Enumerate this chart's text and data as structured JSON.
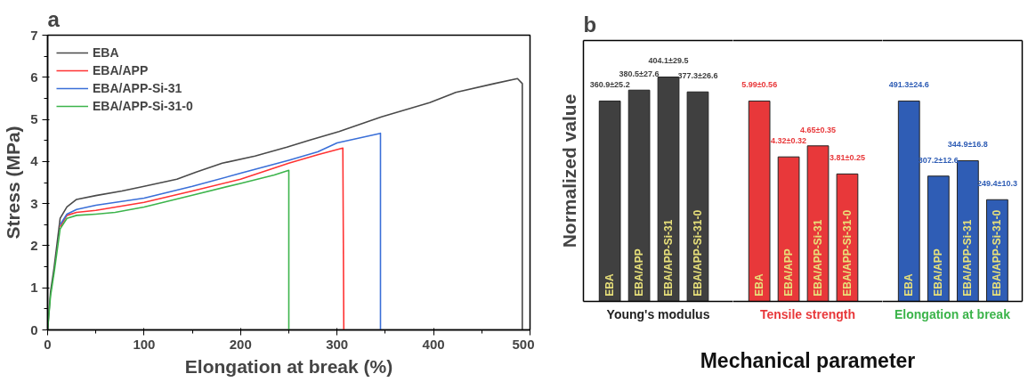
{
  "chart_data": [
    {
      "type": "line",
      "title": "a",
      "xlabel": "Elongation at break (%)",
      "ylabel": "Stress (MPa)",
      "xlim": [
        0,
        500
      ],
      "ylim": [
        0,
        7
      ],
      "xticks": [
        0,
        100,
        200,
        300,
        400,
        500
      ],
      "yticks": [
        0,
        1,
        2,
        3,
        4,
        5,
        6,
        7
      ],
      "legend": "top left",
      "line_style": "solid",
      "series": [
        {
          "name": "EBA",
          "color": "#4a4a4a",
          "x": [
            0,
            3,
            6.7,
            13,
            20,
            30,
            50,
            77,
            100,
            134,
            154,
            181,
            215,
            248,
            272,
            302,
            346,
            396,
            423,
            463,
            487,
            492,
            492
          ],
          "values": [
            0,
            0.9,
            1.48,
            2.65,
            2.92,
            3.1,
            3.19,
            3.3,
            3.41,
            3.58,
            3.75,
            3.96,
            4.13,
            4.34,
            4.51,
            4.71,
            5.06,
            5.4,
            5.64,
            5.85,
            5.97,
            5.85,
            0
          ]
        },
        {
          "name": "EBA/APP",
          "color": "#ff3333",
          "x": [
            13,
            20,
            30,
            50,
            100,
            150,
            200,
            250,
            280,
            306,
            307
          ],
          "values": [
            2.45,
            2.72,
            2.79,
            2.84,
            3.03,
            3.3,
            3.58,
            3.96,
            4.16,
            4.32,
            0
          ]
        },
        {
          "name": "EBA/APP-Si-31",
          "color": "#3a6fd8",
          "x": [
            13,
            20,
            30,
            50,
            100,
            150,
            200,
            250,
            280,
            300,
            345,
            345
          ],
          "values": [
            2.5,
            2.75,
            2.86,
            2.96,
            3.13,
            3.41,
            3.72,
            4.03,
            4.23,
            4.44,
            4.67,
            0
          ]
        },
        {
          "name": "EBA/APP-Si-31-0",
          "color": "#3cb44b",
          "x": [
            0,
            3,
            7,
            13,
            20,
            30,
            50,
            70,
            100,
            150,
            200,
            235,
            250,
            250
          ],
          "values": [
            0,
            0.8,
            1.4,
            2.4,
            2.65,
            2.72,
            2.75,
            2.79,
            2.92,
            3.2,
            3.48,
            3.68,
            3.79,
            0
          ]
        }
      ]
    },
    {
      "type": "bar",
      "title": "b",
      "ylabel": "Normalized value",
      "xlabel": "Young's modulus",
      "categories": [
        "EBA",
        "EBA/APP",
        "EBA/APP-Si-31",
        "EBA/APP-Si-31-0"
      ],
      "color": "#404040",
      "values": [
        360.9,
        380.5,
        404.1,
        377.3
      ],
      "value_labels": [
        "360.9±25.2",
        "380.5±27.6",
        "404.1±29.5",
        "377.3±26.6"
      ]
    },
    {
      "type": "bar",
      "xlabel": "Tensile strength",
      "annotations": [
        "Mechanical parameter"
      ],
      "categories": [
        "EBA",
        "EBA/APP",
        "EBA/APP-Si-31",
        "EBA/APP-Si-31-0"
      ],
      "color": "#e8383a",
      "values": [
        5.99,
        4.32,
        4.65,
        3.81
      ],
      "value_labels": [
        "5.99±0.56",
        "4.32±0.32",
        "4.65±0.35",
        "3.81±0.25"
      ]
    },
    {
      "type": "bar",
      "xlabel": "Elongation at break",
      "categories": [
        "EBA",
        "EBA/APP",
        "EBA/APP-Si-31",
        "EBA/APP-Si-31-0"
      ],
      "color": "#2f5db5",
      "values": [
        491.3,
        307.2,
        344.9,
        249.4
      ],
      "value_labels": [
        "491.3±24.6",
        "307.2±12.6",
        "344.9±16.8",
        "249.4±10.3"
      ]
    }
  ]
}
